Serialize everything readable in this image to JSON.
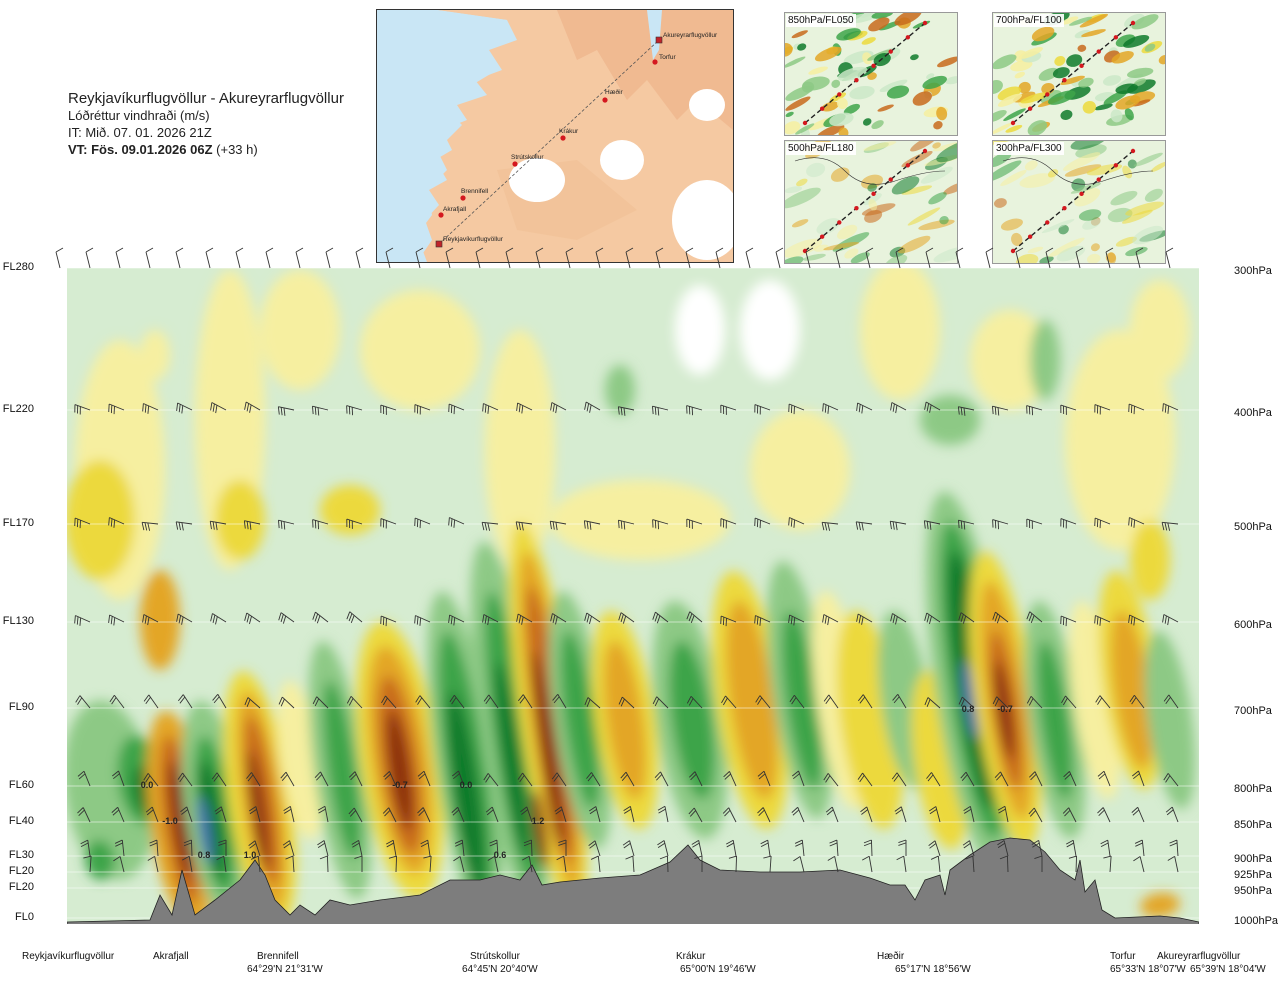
{
  "header": {
    "route": "Reykjavíkurflugvöllur - Akureyrarflugvöllur",
    "parameter": "Lóðréttur vindhraði (m/s)",
    "issue_time": "IT: Mið. 07. 01. 2026 21Z",
    "valid_time": "VT: Fös. 09.01.2026 06Z",
    "lead_time": "(+33 h)"
  },
  "map": {
    "points": [
      {
        "name": "Akureyrarflugvöllur",
        "type": "airport"
      },
      {
        "name": "Torfur",
        "type": "point"
      },
      {
        "name": "Hæðir",
        "type": "point"
      },
      {
        "name": "Krákur",
        "type": "point"
      },
      {
        "name": "Strútskollur",
        "type": "point"
      },
      {
        "name": "Brennifell",
        "type": "point"
      },
      {
        "name": "Akrafjall",
        "type": "point"
      },
      {
        "name": "Reykjavíkurflugvöllur",
        "type": "airport"
      }
    ]
  },
  "thumbnails": [
    {
      "label": "850hPa/FL050"
    },
    {
      "label": "700hPa/FL100"
    },
    {
      "label": "500hPa/FL180"
    },
    {
      "label": "300hPa/FL300"
    }
  ],
  "levels": [
    {
      "fl": "FL280",
      "hpa": "300hPa"
    },
    {
      "fl": "FL220",
      "hpa": "400hPa"
    },
    {
      "fl": "FL170",
      "hpa": "500hPa"
    },
    {
      "fl": "FL130",
      "hpa": "600hPa"
    },
    {
      "fl": "FL90",
      "hpa": "700hPa"
    },
    {
      "fl": "FL60",
      "hpa": "800hPa"
    },
    {
      "fl": "FL40",
      "hpa": "850hPa"
    },
    {
      "fl": "FL30",
      "hpa": "900hPa"
    },
    {
      "fl": "FL20",
      "hpa": "925hPa"
    },
    {
      "fl": "FL20",
      "hpa": "950hPa"
    },
    {
      "fl": "FL0",
      "hpa": "1000hPa"
    }
  ],
  "locations": [
    {
      "name": "Reykjavíkurflugvöllur",
      "coord": ""
    },
    {
      "name": "Akrafjall",
      "coord": ""
    },
    {
      "name": "Brennifell",
      "coord": "64°29'N 21°31'W"
    },
    {
      "name": "Strútskollur",
      "coord": "64°45'N 20°40'W"
    },
    {
      "name": "Krákur",
      "coord": "65°00'N 19°46'W"
    },
    {
      "name": "Hæðir",
      "coord": "65°17'N 18°56'W"
    },
    {
      "name": "Torfur",
      "coord": "65°33'N 18°07'W"
    },
    {
      "name": "Akureyrarflugvöllur",
      "coord": "65°39'N 18°04'W"
    }
  ],
  "value_labels": [
    "0.0",
    "-1.0",
    "0.8",
    "1.0",
    "-0.7",
    "0.0",
    "0.6",
    "1.2",
    "0.8",
    "-0.7"
  ],
  "colors": {
    "strong_up": "#3f6fb0",
    "dark_green": "#0f7a2c",
    "green": "#3ea44a",
    "mid_green": "#8dc985",
    "light_green": "#cbe8c8",
    "pale": "#f3f7e6",
    "pale_yellow": "#f6efa0",
    "yellow": "#ecd93c",
    "orange": "#e3a626",
    "dark_orange": "#c86a1c",
    "brown": "#8a2f10",
    "terrain": "#7d7d7d"
  }
}
